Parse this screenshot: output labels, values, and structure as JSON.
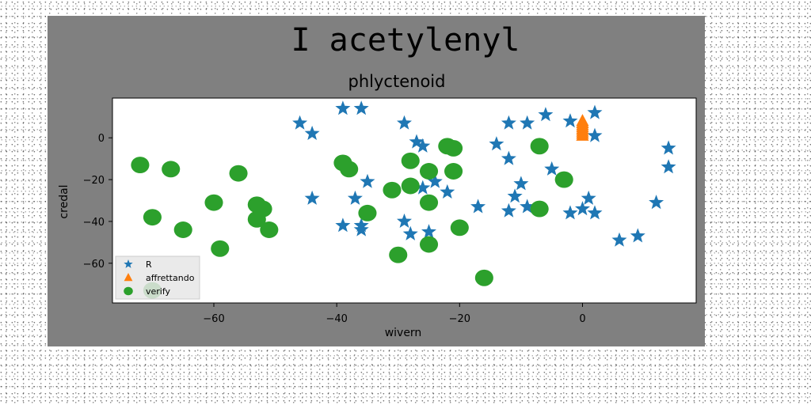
{
  "figure": {
    "suptitle": "I acetylenyl",
    "background": "#808080"
  },
  "chart_data": {
    "type": "scatter",
    "title": "phlyctenoid",
    "xlabel": "wivern",
    "ylabel": "credal",
    "xlim": [
      -76.5,
      18.5
    ],
    "ylim": [
      -79,
      19
    ],
    "xticks": [
      -60,
      -40,
      -20,
      0
    ],
    "yticks": [
      0,
      -20,
      -40,
      -60
    ],
    "xtick_labels": [
      "−60",
      "−40",
      "−20",
      "0"
    ],
    "ytick_labels": [
      "0",
      "−20",
      "−40",
      "−60"
    ],
    "grid": false,
    "legend_position": "lower-left",
    "series": [
      {
        "name": "R",
        "marker": "star",
        "color": "#1f77b4",
        "points": [
          [
            -46,
            7
          ],
          [
            -44,
            2
          ],
          [
            -39,
            14
          ],
          [
            -36,
            14
          ],
          [
            -29,
            7
          ],
          [
            -27,
            -2
          ],
          [
            -26,
            -4
          ],
          [
            -44,
            -29
          ],
          [
            -39,
            -42
          ],
          [
            -37,
            -29
          ],
          [
            -35,
            -21
          ],
          [
            -36,
            -42
          ],
          [
            -36,
            -44
          ],
          [
            -29,
            -40
          ],
          [
            -28,
            -46
          ],
          [
            -26,
            -24
          ],
          [
            -25,
            -45
          ],
          [
            -24,
            -21
          ],
          [
            -22,
            -26
          ],
          [
            -17,
            -33
          ],
          [
            -14,
            -3
          ],
          [
            -12,
            -35
          ],
          [
            -12,
            -10
          ],
          [
            -12,
            7
          ],
          [
            -11,
            -28
          ],
          [
            -10,
            -22
          ],
          [
            -9,
            7
          ],
          [
            -9,
            -33
          ],
          [
            -6,
            11
          ],
          [
            -5,
            -15
          ],
          [
            -2,
            8
          ],
          [
            -2,
            -36
          ],
          [
            0,
            -34
          ],
          [
            1,
            -29
          ],
          [
            2,
            -36
          ],
          [
            2,
            1
          ],
          [
            2,
            12
          ],
          [
            6,
            -49
          ],
          [
            9,
            -47
          ],
          [
            12,
            -31
          ],
          [
            14,
            -5
          ],
          [
            14,
            -14
          ]
        ]
      },
      {
        "name": "affrettando",
        "marker": "triangle",
        "color": "#ff7f0e",
        "points": [
          [
            0,
            1
          ],
          [
            0,
            2
          ],
          [
            0,
            3
          ],
          [
            0,
            4
          ],
          [
            0,
            5
          ],
          [
            0,
            6
          ],
          [
            0,
            7
          ],
          [
            0,
            8
          ]
        ]
      },
      {
        "name": "verify",
        "marker": "circle",
        "color": "#2ca02c",
        "points": [
          [
            -72,
            -13
          ],
          [
            -67,
            -15
          ],
          [
            -70,
            -38
          ],
          [
            -65,
            -44
          ],
          [
            -59,
            -53
          ],
          [
            -60,
            -31
          ],
          [
            -56,
            -17
          ],
          [
            -53,
            -32
          ],
          [
            -53,
            -39
          ],
          [
            -52,
            -34
          ],
          [
            -51,
            -44
          ],
          [
            -39,
            -12
          ],
          [
            -38,
            -15
          ],
          [
            -35,
            -36
          ],
          [
            -31,
            -25
          ],
          [
            -30,
            -56
          ],
          [
            -28,
            -11
          ],
          [
            -28,
            -23
          ],
          [
            -25,
            -16
          ],
          [
            -25,
            -31
          ],
          [
            -25,
            -51
          ],
          [
            -22,
            -4
          ],
          [
            -21,
            -5
          ],
          [
            -21,
            -16
          ],
          [
            -20,
            -43
          ],
          [
            -16,
            -67
          ],
          [
            -7,
            -4
          ],
          [
            -7,
            -34
          ],
          [
            -3,
            -20
          ],
          [
            -70,
            -73
          ]
        ]
      }
    ]
  }
}
